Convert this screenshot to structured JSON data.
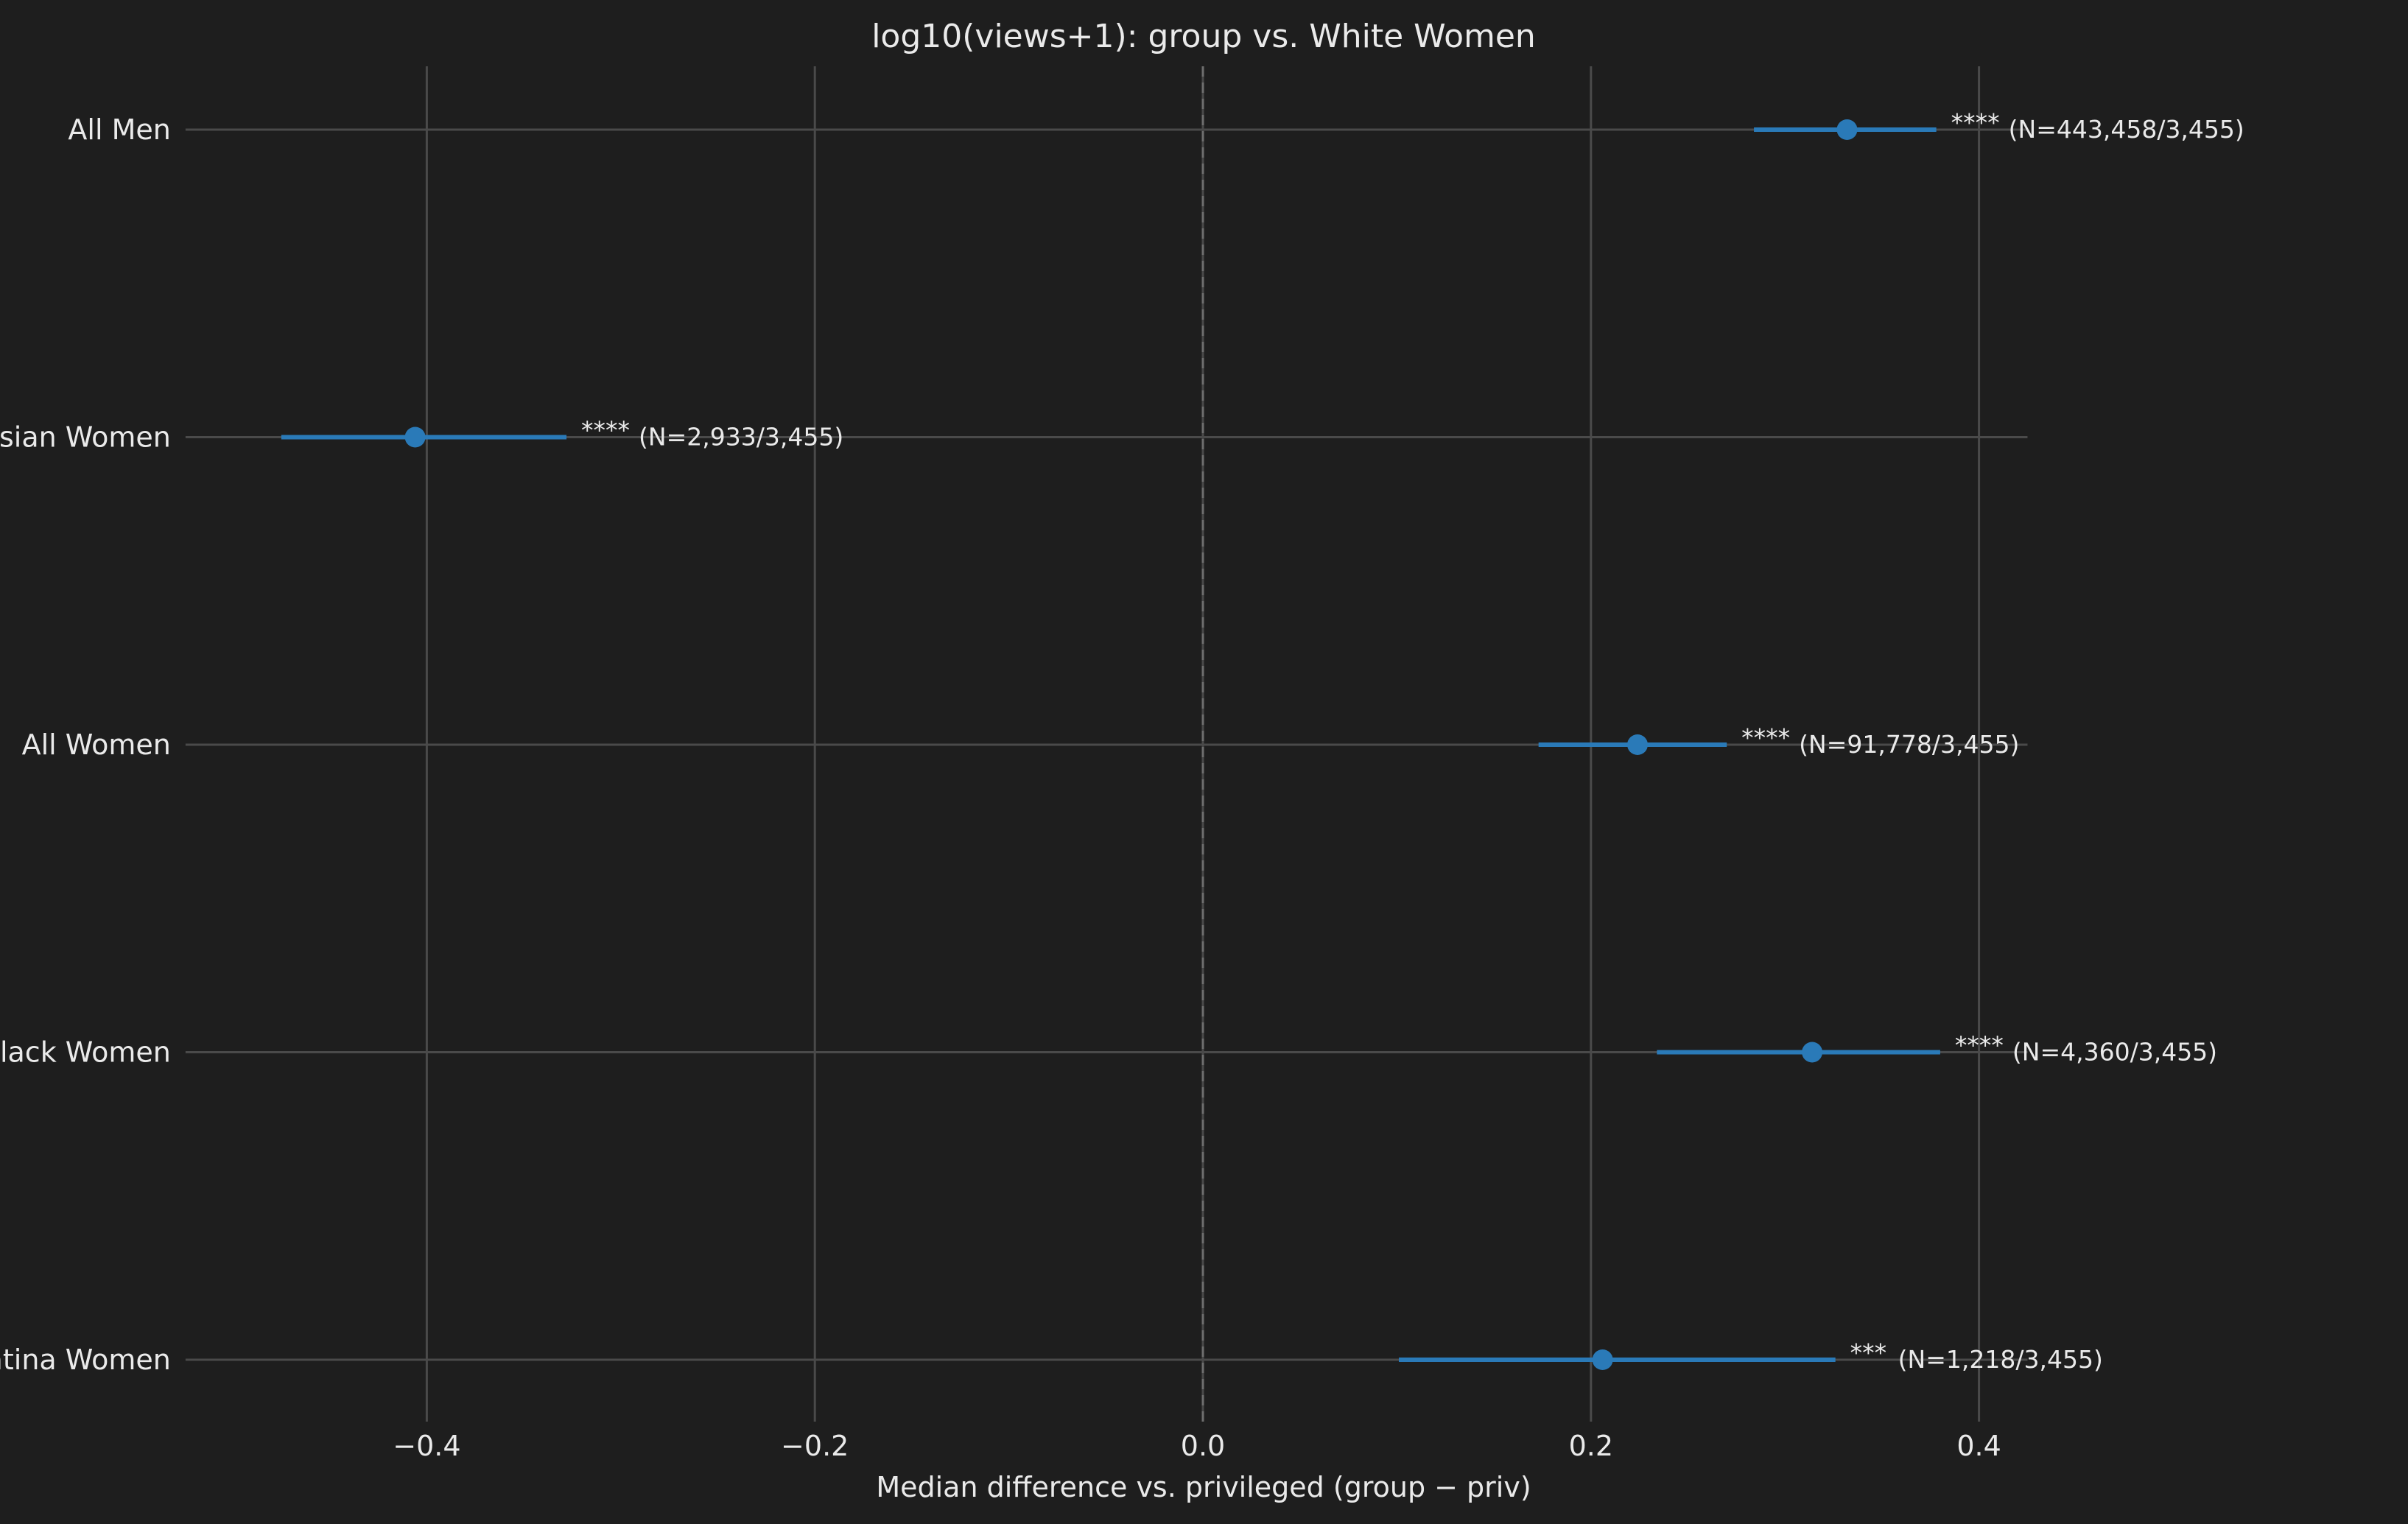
{
  "chart_data": {
    "type": "scatter",
    "title": "log10(views+1): group vs. White Women",
    "xlabel": "Median difference vs. privileged (group − priv)",
    "ylabel": "",
    "xlim": [
      -0.5,
      0.5
    ],
    "xticks": [
      -0.4,
      -0.2,
      0.0,
      0.2,
      0.4
    ],
    "xtick_labels": [
      "−0.4",
      "−0.2",
      "0.0",
      "0.2",
      "0.4"
    ],
    "grid": true,
    "reference_line_x": 0.0,
    "point_color": "#2a7ab8",
    "background_color": "#1e1e1e",
    "groups": [
      {
        "label": "All Men",
        "median_diff": 0.332,
        "ci_low": 0.284,
        "ci_high": 0.378,
        "significance": "****",
        "n_label": "(N=443,458/3,455)"
      },
      {
        "label": "Asian Women",
        "median_diff": -0.406,
        "ci_low": -0.475,
        "ci_high": -0.328,
        "significance": "****",
        "n_label": "(N=2,933/3,455)"
      },
      {
        "label": "All Women",
        "median_diff": 0.224,
        "ci_low": 0.173,
        "ci_high": 0.27,
        "significance": "****",
        "n_label": "(N=91,778/3,455)"
      },
      {
        "label": "Black Women",
        "median_diff": 0.314,
        "ci_low": 0.234,
        "ci_high": 0.38,
        "significance": "****",
        "n_label": "(N=4,360/3,455)"
      },
      {
        "label": "Latina Women",
        "median_diff": 0.206,
        "ci_low": 0.101,
        "ci_high": 0.326,
        "significance": "***",
        "n_label": "(N=1,218/3,455)"
      }
    ]
  }
}
